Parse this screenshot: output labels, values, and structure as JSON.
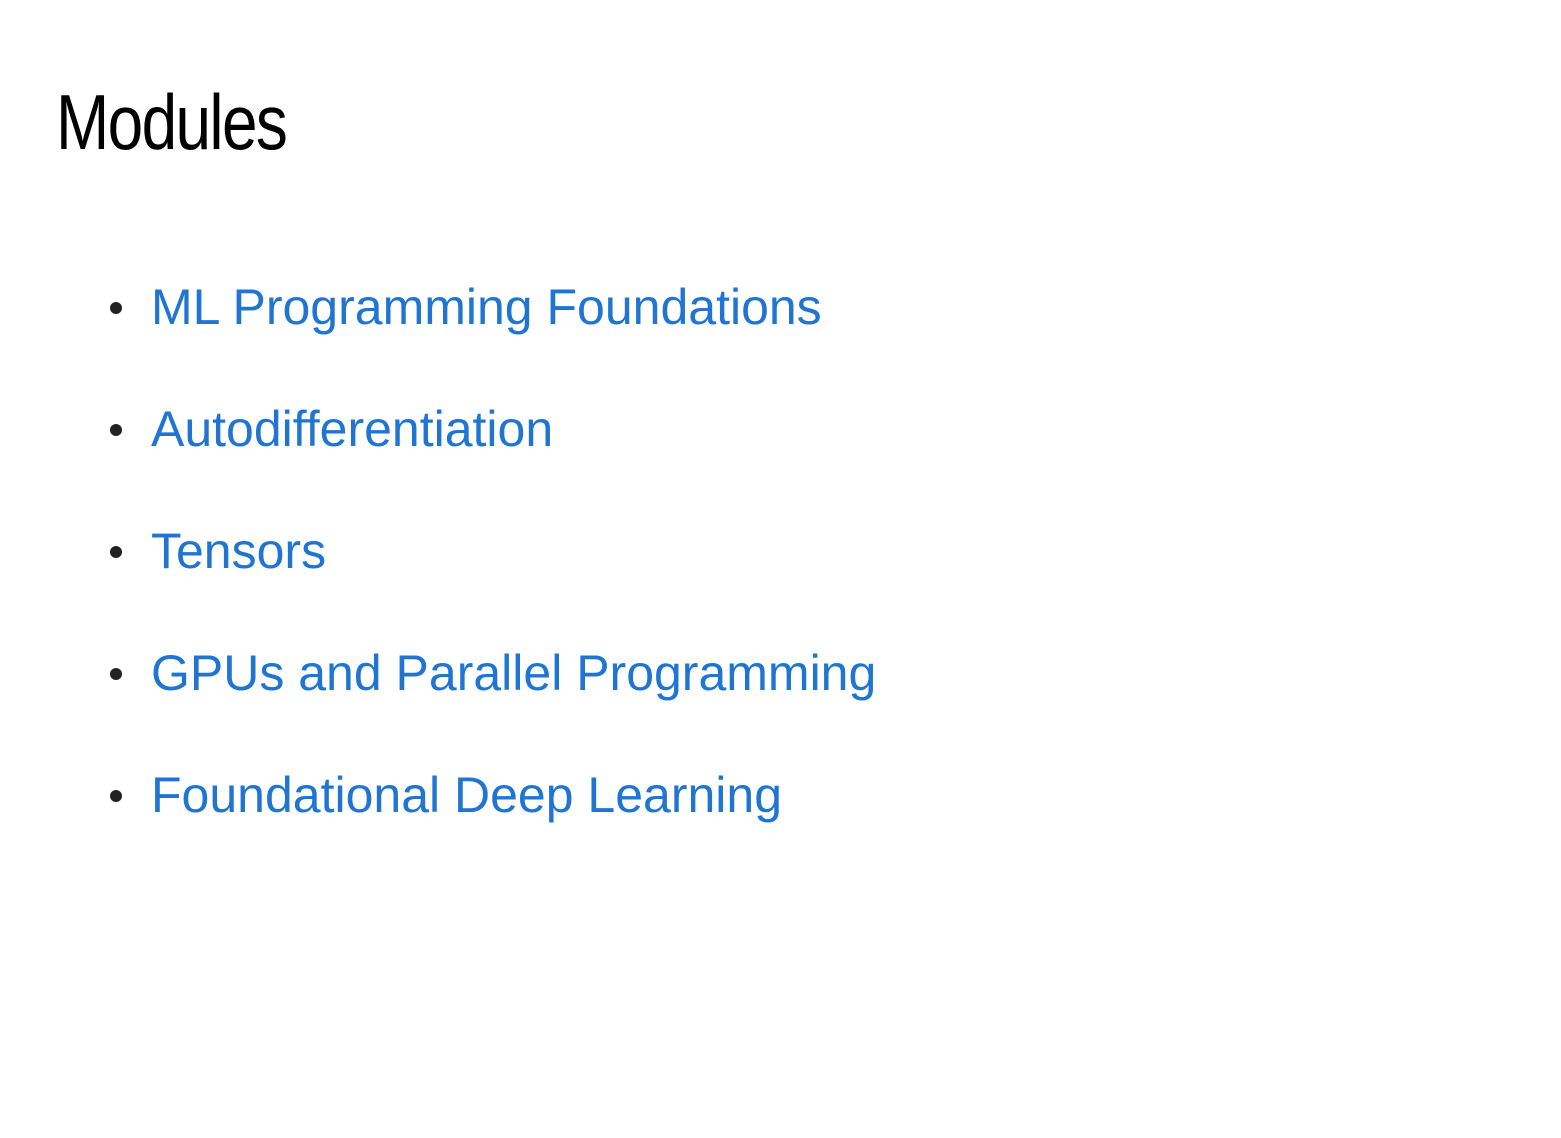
{
  "page": {
    "title": "Modules"
  },
  "modules": {
    "items": [
      {
        "label": "ML Programming Foundations"
      },
      {
        "label": "Autodifferentiation"
      },
      {
        "label": "Tensors"
      },
      {
        "label": "GPUs and Parallel Programming"
      },
      {
        "label": "Foundational Deep Learning"
      }
    ]
  },
  "colors": {
    "link": "#1f75d1",
    "heading": "#000000",
    "bullet": "#222222",
    "background": "#ffffff"
  }
}
